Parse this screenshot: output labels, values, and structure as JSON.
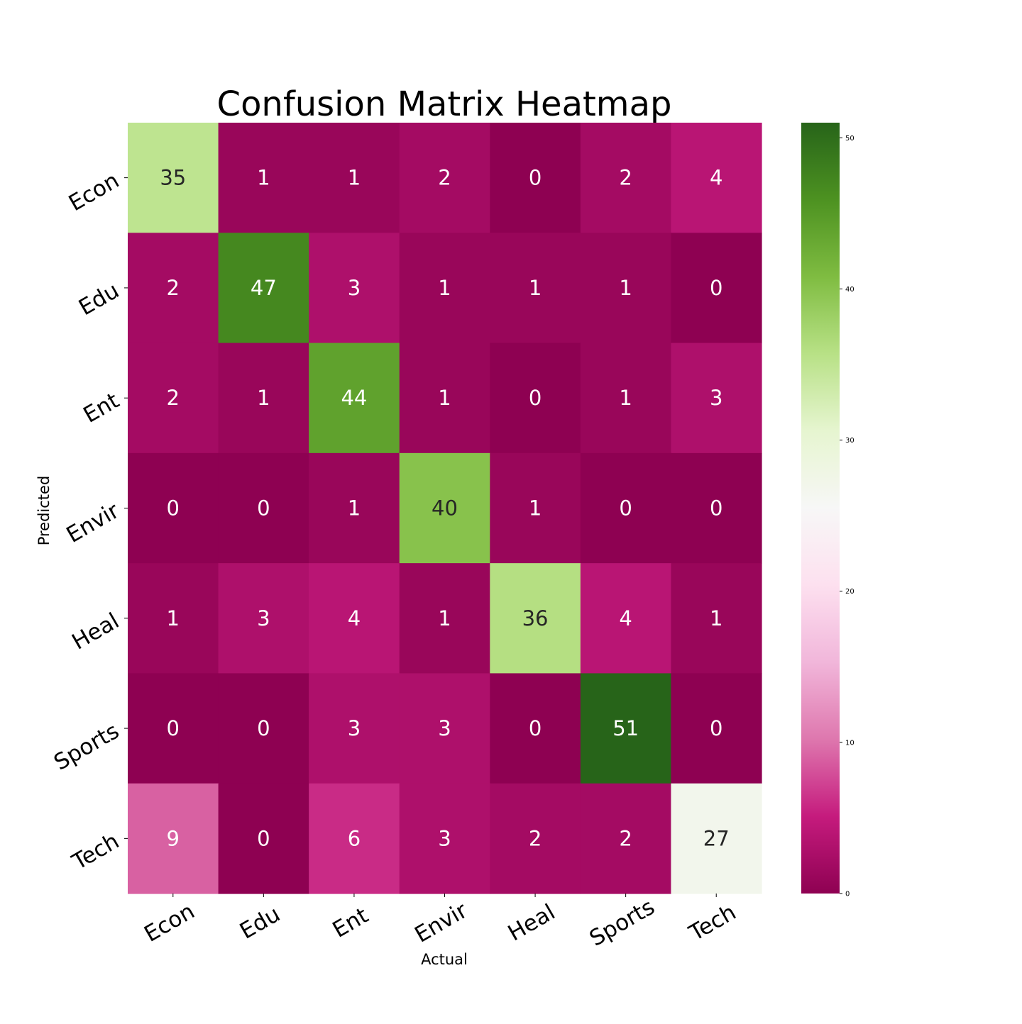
{
  "chart_data": {
    "type": "heatmap",
    "title": "Confusion Matrix Heatmap",
    "xlabel": "Actual",
    "ylabel": "Predicted",
    "x_categories": [
      "Econ",
      "Edu",
      "Ent",
      "Envir",
      "Heal",
      "Sports",
      "Tech"
    ],
    "y_categories": [
      "Econ",
      "Edu",
      "Ent",
      "Envir",
      "Heal",
      "Sports",
      "Tech"
    ],
    "values": [
      [
        35,
        1,
        1,
        2,
        0,
        2,
        4
      ],
      [
        2,
        47,
        3,
        1,
        1,
        1,
        0
      ],
      [
        2,
        1,
        44,
        1,
        0,
        1,
        3
      ],
      [
        0,
        0,
        1,
        40,
        1,
        0,
        0
      ],
      [
        1,
        3,
        4,
        1,
        36,
        4,
        1
      ],
      [
        0,
        0,
        3,
        3,
        0,
        51,
        0
      ],
      [
        9,
        0,
        6,
        3,
        2,
        2,
        27
      ]
    ],
    "colorscale": "PiYG",
    "color_range": [
      0,
      51
    ],
    "colorbar_ticks": [
      "0",
      "10",
      "20",
      "30",
      "40",
      "50"
    ]
  }
}
